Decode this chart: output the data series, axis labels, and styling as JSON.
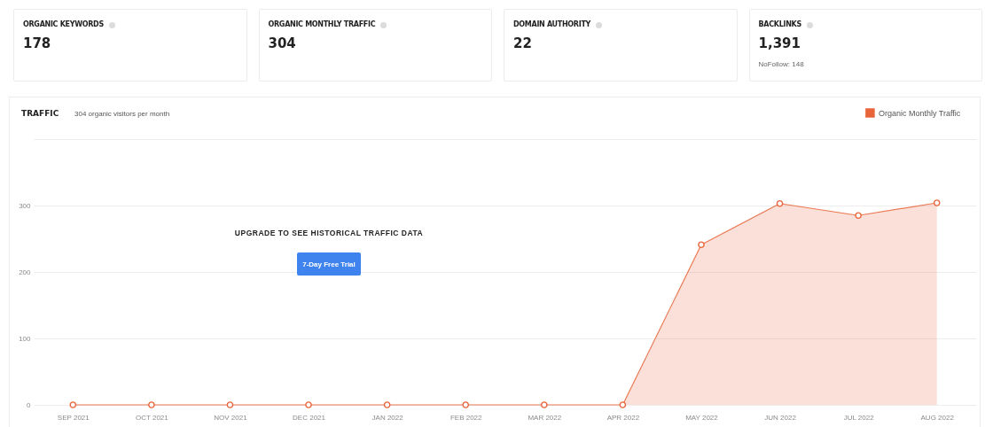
{
  "chart_data": [
    {
      "type": "other",
      "categories": [
        "ORGANIC KEYWORDS",
        "ORGANIC MONTHLY TRAFFIC",
        "DOMAIN AUTHORITY",
        "BACKLINKS"
      ],
      "value_labels": [
        "178",
        "304",
        "22",
        "1,391"
      ],
      "annotations": [
        "NoFollow: 148"
      ]
    },
    {
      "type": "area",
      "title": "TRAFFIC",
      "subtitle": "304 organic visitors per month",
      "categories": [
        "SEP 2021",
        "OCT 2021",
        "NOV 2021",
        "DEC 2021",
        "JAN 2022",
        "FEB 2022",
        "MAR 2022",
        "APR 2022",
        "MAY 2022",
        "JUN 2022",
        "JUL 2022",
        "AUG 2022"
      ],
      "series": [
        {
          "name": "Organic Monthly Traffic",
          "color": "#e8643a",
          "values": [
            0,
            0,
            0,
            0,
            0,
            0,
            0,
            0,
            241,
            303,
            285,
            304
          ]
        }
      ],
      "ylim": [
        0,
        400
      ],
      "yticks": [
        0,
        100,
        200,
        300,
        {
          "value": 400,
          "label": null
        }
      ],
      "grid": "y",
      "legend": "top right",
      "marker": "circle",
      "annotations": [
        "UPGRADE TO SEE HISTORICAL TRAFFIC DATA",
        "7-Day Free Trial"
      ]
    }
  ]
}
